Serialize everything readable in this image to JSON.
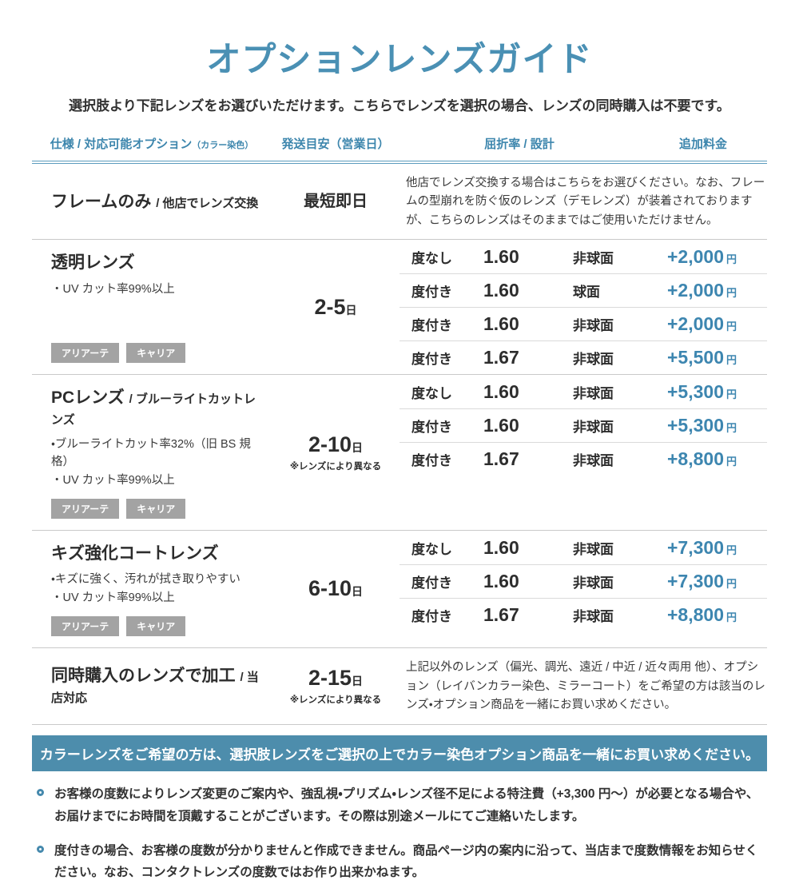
{
  "colors": {
    "accent": "#4589ad",
    "banner_bg": "#4d8dac",
    "tag_bg": "#a3a3a3",
    "price_text": "#3d86b0"
  },
  "header": {
    "title": "オプションレンズガイド",
    "subtitle": "選択肢より下記レンズをお選びいただけます。こちらでレンズを選択の場合、レンズの同時購入は不要です。"
  },
  "table": {
    "col_headers": {
      "spec": "仕様 / 対応可能オプション",
      "spec_note": "（カラー染色）",
      "shipping": "発送目安（営業日）",
      "refraction": "屈折率 / 設計",
      "price": "追加料金"
    },
    "rows": [
      {
        "name": "フレームのみ",
        "name_sub": "/ 他店でレンズ交換",
        "shipping": "最短即日",
        "description": "他店でレンズ交換する場合はこちらをお選びください。なお、フレームの型崩れを防ぐ仮のレンズ（デモレンズ）が装着されておりますが、こちらのレンズはそのままではご使用いただけません。"
      },
      {
        "name": "透明レンズ",
        "bullet1": "・UV カット率99%以上",
        "tag1": "アリアーテ",
        "tag2": "キャリア",
        "shipping": "2-5",
        "shipping_unit": "日",
        "options": [
          {
            "power": "度なし",
            "index": "1.60",
            "design": "非球面",
            "price": "+2,000",
            "unit": "円"
          },
          {
            "power": "度付き",
            "index": "1.60",
            "design": "球面",
            "price": "+2,000",
            "unit": "円"
          },
          {
            "power": "度付き",
            "index": "1.60",
            "design": "非球面",
            "price": "+2,000",
            "unit": "円"
          },
          {
            "power": "度付き",
            "index": "1.67",
            "design": "非球面",
            "price": "+5,500",
            "unit": "円"
          }
        ]
      },
      {
        "name": "PCレンズ",
        "name_sub": "/ ブルーライトカットレンズ",
        "bullet1": "・ブルーライトカット率32%（旧 BS 規格）",
        "bullet2": "・UV カット率99%以上",
        "tag1": "アリアーテ",
        "tag2": "キャリア",
        "shipping": "2-10",
        "shipping_unit": "日",
        "shipping_note": "※レンズにより異なる",
        "options": [
          {
            "power": "度なし",
            "index": "1.60",
            "design": "非球面",
            "price": "+5,300",
            "unit": "円"
          },
          {
            "power": "度付き",
            "index": "1.60",
            "design": "非球面",
            "price": "+5,300",
            "unit": "円"
          },
          {
            "power": "度付き",
            "index": "1.67",
            "design": "非球面",
            "price": "+8,800",
            "unit": "円"
          }
        ]
      },
      {
        "name": "キズ強化コートレンズ",
        "bullet1": "・キズに強く、汚れが拭き取りやすい",
        "bullet2": "・UV カット率99%以上",
        "tag1": "アリアーテ",
        "tag2": "キャリア",
        "shipping": "6-10",
        "shipping_unit": "日",
        "options": [
          {
            "power": "度なし",
            "index": "1.60",
            "design": "非球面",
            "price": "+7,300",
            "unit": "円"
          },
          {
            "power": "度付き",
            "index": "1.60",
            "design": "非球面",
            "price": "+7,300",
            "unit": "円"
          },
          {
            "power": "度付き",
            "index": "1.67",
            "design": "非球面",
            "price": "+8,800",
            "unit": "円"
          }
        ]
      },
      {
        "name": "同時購入のレンズで加工",
        "name_sub": "/ 当店対応",
        "shipping": "2-15",
        "shipping_unit": "日",
        "shipping_note": "※レンズにより異なる",
        "description": "上記以外のレンズ（偏光、調光、遠近 / 中近 / 近々両用 他）、オプション（レイバンカラー染色、ミラーコート）をご希望の方は該当のレンズ・オプション商品を一緒にお買い求めください。"
      }
    ]
  },
  "banner": {
    "text": "カラーレンズをご希望の方は、選択肢レンズをご選択の上でカラー染色オプション商品を一緒にお買い求めください。"
  },
  "notes": [
    {
      "text": "お客様の度数によりレンズ変更のご案内や、強乱視・プリズム・レンズ径不足による特注費（+3,300 円〜）が必要となる場合や、お届けまでにお時間を頂戴することがございます。その際は別途メールにてご連絡いたします。"
    },
    {
      "text": "度付きの場合、お客様の度数が分かりませんと作成できません。商品ページ内の案内に沿って、当店まで度数情報をお知らせください。なお、コンタクトレンズの度数ではお作り出来かねます。"
    }
  ]
}
